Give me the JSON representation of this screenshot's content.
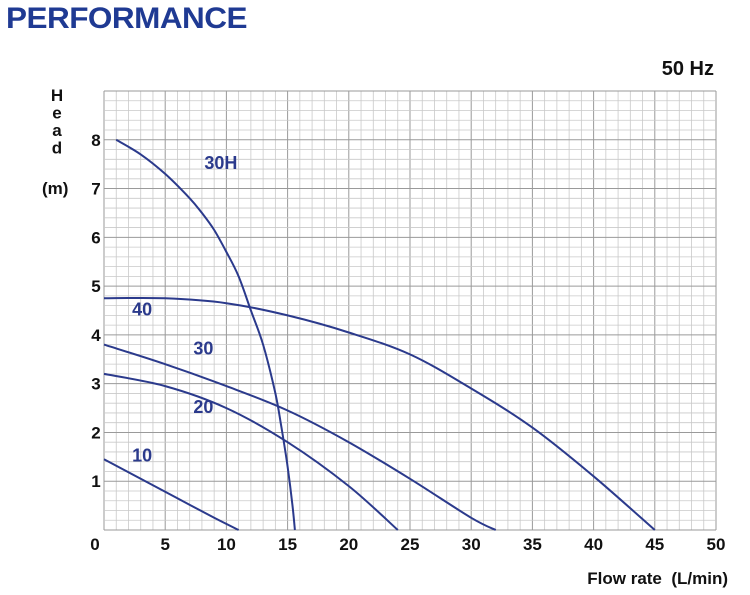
{
  "title": "PERFORMANCE",
  "chart_data": {
    "type": "line",
    "frequency": "50 Hz",
    "xlabel": "Flow rate  (L/min)",
    "ylabel_letters": [
      "H",
      "e",
      "a",
      "d"
    ],
    "ylabel_unit": "(m)",
    "xlim": [
      0,
      50
    ],
    "ylim": [
      0,
      9
    ],
    "xticks": [
      0,
      5,
      10,
      15,
      20,
      25,
      30,
      35,
      40,
      45,
      50
    ],
    "yticks": [
      1,
      2,
      3,
      4,
      5,
      6,
      7,
      8
    ],
    "grid": true,
    "colors": {
      "curve": "#2b3a8c",
      "title": "#1f3a93"
    },
    "series": [
      {
        "name": "30H",
        "label_at": [
          8.2,
          7.4
        ],
        "x": [
          1,
          3,
          5,
          7,
          8,
          9,
          10,
          11,
          12,
          13,
          14,
          14.5,
          15,
          15.4,
          15.6
        ],
        "y": [
          8.0,
          7.7,
          7.3,
          6.8,
          6.5,
          6.15,
          5.7,
          5.2,
          4.5,
          3.8,
          2.8,
          2.1,
          1.3,
          0.5,
          0.0
        ]
      },
      {
        "name": "40",
        "label_at": [
          2.3,
          4.4
        ],
        "x": [
          0,
          5,
          10,
          15,
          20,
          25,
          30,
          35,
          40,
          45
        ],
        "y": [
          4.75,
          4.75,
          4.65,
          4.4,
          4.05,
          3.6,
          2.9,
          2.1,
          1.1,
          0.0
        ]
      },
      {
        "name": "30",
        "label_at": [
          7.3,
          3.6
        ],
        "x": [
          0,
          5,
          10,
          15,
          20,
          25,
          30,
          32
        ],
        "y": [
          3.8,
          3.4,
          2.95,
          2.45,
          1.8,
          1.05,
          0.25,
          0.0
        ]
      },
      {
        "name": "20",
        "label_at": [
          7.3,
          2.4
        ],
        "x": [
          0,
          5,
          10,
          15,
          20,
          24
        ],
        "y": [
          3.2,
          2.95,
          2.5,
          1.8,
          0.9,
          0.0
        ]
      },
      {
        "name": "10",
        "label_at": [
          2.3,
          1.4
        ],
        "x": [
          0,
          3,
          6,
          9,
          11
        ],
        "y": [
          1.45,
          1.05,
          0.65,
          0.25,
          0.0
        ]
      }
    ]
  }
}
